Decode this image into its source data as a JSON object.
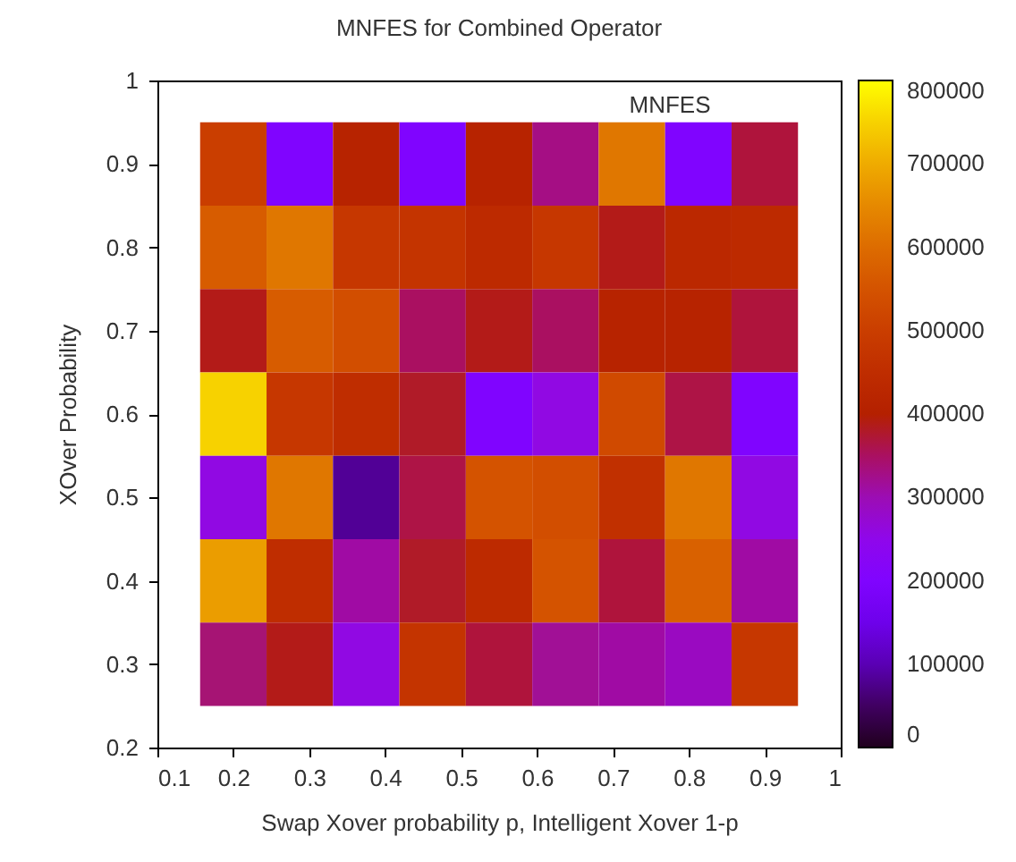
{
  "chart_data": {
    "type": "heatmap",
    "title": "MNFES for Combined Operator",
    "xlabel": "Swap Xover probability p, Intelligent Xover 1-p",
    "ylabel": "XOver Probability",
    "annotations": [
      "MNFES"
    ],
    "x": [
      0.2,
      0.2875,
      0.375,
      0.4625,
      0.55,
      0.6375,
      0.725,
      0.8125,
      0.9
    ],
    "y": [
      0.9,
      0.8,
      0.7,
      0.6,
      0.5,
      0.4,
      0.3
    ],
    "cells": [
      [
        500000,
        200000,
        410000,
        200000,
        410000,
        330000,
        620000,
        200000,
        370000
      ],
      [
        570000,
        620000,
        480000,
        470000,
        440000,
        480000,
        390000,
        430000,
        440000
      ],
      [
        390000,
        570000,
        540000,
        350000,
        390000,
        350000,
        410000,
        410000,
        370000
      ],
      [
        750000,
        480000,
        450000,
        380000,
        200000,
        260000,
        530000,
        365000,
        200000
      ],
      [
        260000,
        620000,
        80000,
        365000,
        550000,
        540000,
        460000,
        620000,
        260000
      ],
      [
        680000,
        450000,
        310000,
        380000,
        440000,
        550000,
        370000,
        580000,
        310000
      ],
      [
        340000,
        390000,
        260000,
        470000,
        370000,
        320000,
        310000,
        290000,
        480000
      ]
    ],
    "xlim": [
      0.1,
      1
    ],
    "xticks": [
      0.1,
      0.2,
      0.3,
      0.4,
      0.5,
      0.6,
      0.7,
      0.8,
      0.9,
      1
    ],
    "ylim": [
      0.2,
      1
    ],
    "yticks": [
      0.2,
      0.3,
      0.4,
      0.5,
      0.6,
      0.7,
      0.8,
      0.9,
      1
    ],
    "clim": [
      0,
      800000
    ],
    "cticks": [
      0,
      100000,
      200000,
      300000,
      400000,
      500000,
      600000,
      700000,
      800000
    ]
  }
}
